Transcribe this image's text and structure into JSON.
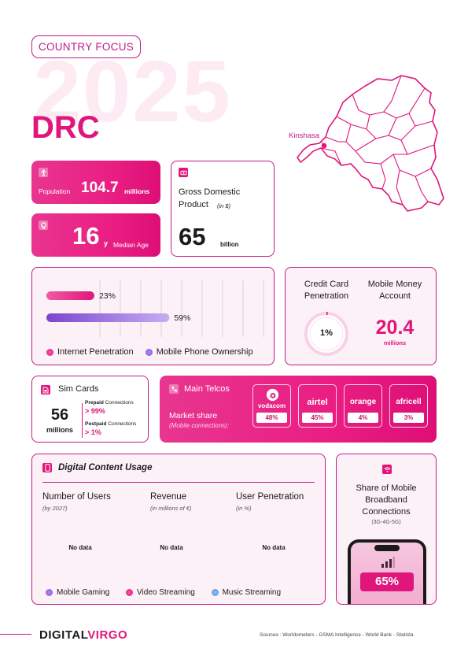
{
  "header": {
    "tag": "COUNTRY FOCUS",
    "year": "2025",
    "country": "DRC",
    "capital": "Kinshasa"
  },
  "population": {
    "label": "Population",
    "value": "104.7",
    "unit": "millions"
  },
  "median_age": {
    "value": "16",
    "unit": "y",
    "label": "Median Age"
  },
  "gdp": {
    "title": "Gross Domestic Product",
    "unit": "(in $)",
    "value": "65",
    "suffix": "billion"
  },
  "penetration_chart": {
    "legend": [
      "Internet Penetration",
      "Mobile Phone Ownership"
    ],
    "colors": [
      "#e0167c",
      "#8a4fd6"
    ]
  },
  "chart_data": {
    "type": "bar",
    "orientation": "horizontal",
    "categories": [
      "Internet Penetration",
      "Mobile Phone Ownership"
    ],
    "values": [
      23,
      59
    ],
    "value_labels": [
      "23%",
      "59%"
    ],
    "xlim": [
      0,
      100
    ]
  },
  "credit_card": {
    "title": "Credit Card Penetration",
    "value": "1%",
    "percent": 1
  },
  "mobile_money": {
    "title": "Mobile Money Account",
    "value": "20.4",
    "unit": "millions"
  },
  "sim_cards": {
    "title": "Sim Cards",
    "value": "56",
    "unit": "millions",
    "prepaid_label": "Prepaid",
    "prepaid_suffix": "Connections",
    "prepaid_value": "99%",
    "postpaid_label": "Postpaid",
    "postpaid_suffix": "Connections",
    "postpaid_value": "1%"
  },
  "telcos": {
    "title": "Main Telcos",
    "subtitle": "Market share",
    "note": "(Mobile connections):",
    "items": [
      {
        "name": "vodacom",
        "value": "48%"
      },
      {
        "name": "airtel",
        "value": "45%"
      },
      {
        "name": "orange",
        "value": "4%"
      },
      {
        "name": "africell",
        "value": "3%"
      }
    ]
  },
  "digital_content": {
    "title": "Digital Content Usage",
    "columns": [
      {
        "title": "Number of Users",
        "sub": "(by 2027)",
        "value": "No data"
      },
      {
        "title": "Revenue",
        "sub": "(in millions of €)",
        "value": "No data"
      },
      {
        "title": "User Penetration",
        "sub": "(in %)",
        "value": "No data"
      }
    ],
    "legend": [
      "Mobile Gaming",
      "Video Streaming",
      "Music Streaming"
    ],
    "legend_colors": [
      "#8a4fd6",
      "#e0167c",
      "#4a90e2"
    ]
  },
  "broadband": {
    "title": "Share of Mobile Broadband Connections",
    "sub": "(3G-4G-5G)",
    "value": "65%"
  },
  "footer": {
    "brand_a": "DIGITAL",
    "brand_b": "VIRGO",
    "sources": "Sources : Worldometers - GSMA Intelligence - World Bank - Statista"
  }
}
